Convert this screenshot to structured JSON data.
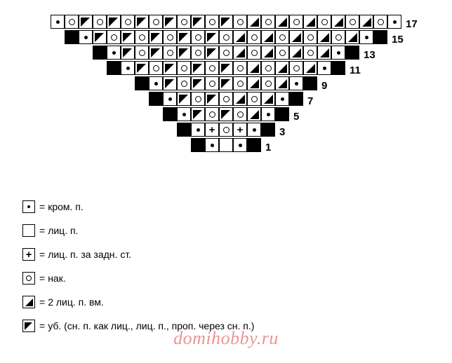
{
  "stitches": {
    "e": "dot",
    "k": "",
    "o": "circ",
    "r": "tri-r",
    "l": "tri-l",
    "p": "plus",
    "b": "black"
  },
  "chart": {
    "cell_size": 20,
    "rows": [
      {
        "num": "17",
        "cells": [
          "e",
          "o",
          "l",
          "o",
          "l",
          "o",
          "l",
          "o",
          "l",
          "o",
          "l",
          "o",
          "l",
          "o",
          "r",
          "o",
          "r",
          "o",
          "r",
          "o",
          "r",
          "o",
          "r",
          "o",
          "e"
        ]
      },
      {
        "num": "15",
        "cells": [
          "b",
          "e",
          "l",
          "o",
          "l",
          "o",
          "l",
          "o",
          "l",
          "o",
          "l",
          "o",
          "r",
          "o",
          "r",
          "o",
          "r",
          "o",
          "r",
          "o",
          "r",
          "e",
          "b"
        ]
      },
      {
        "num": "13",
        "cells": [
          "b",
          "e",
          "l",
          "o",
          "l",
          "o",
          "l",
          "o",
          "l",
          "o",
          "r",
          "o",
          "r",
          "o",
          "r",
          "o",
          "r",
          "e",
          "b"
        ]
      },
      {
        "num": "11",
        "cells": [
          "b",
          "e",
          "l",
          "o",
          "l",
          "o",
          "l",
          "o",
          "l",
          "o",
          "r",
          "o",
          "r",
          "o",
          "r",
          "e",
          "b"
        ]
      },
      {
        "num": "9",
        "cells": [
          "b",
          "e",
          "l",
          "o",
          "l",
          "o",
          "l",
          "o",
          "r",
          "o",
          "r",
          "e",
          "b"
        ]
      },
      {
        "num": "7",
        "cells": [
          "b",
          "e",
          "l",
          "o",
          "l",
          "o",
          "r",
          "o",
          "r",
          "e",
          "b"
        ]
      },
      {
        "num": "5",
        "cells": [
          "b",
          "e",
          "l",
          "o",
          "l",
          "o",
          "r",
          "e",
          "b"
        ]
      },
      {
        "num": "3",
        "cells": [
          "b",
          "e",
          "p",
          "o",
          "p",
          "e",
          "b"
        ]
      },
      {
        "num": "1",
        "cells": [
          "b",
          "e",
          "k",
          "e",
          "b"
        ]
      }
    ]
  },
  "legend": [
    {
      "sym": "e",
      "label": "кром. п."
    },
    {
      "sym": "k",
      "label": "лиц. п."
    },
    {
      "sym": "p",
      "label": "лиц. п. за задн. ст."
    },
    {
      "sym": "o",
      "label": "нак."
    },
    {
      "sym": "r",
      "label": "2 лиц. п. вм."
    },
    {
      "sym": "l",
      "label": "уб. (сн. п. как лиц., лиц. п., проп. через сн. п.)"
    }
  ],
  "watermark": "domihobby.ru",
  "eq": "="
}
